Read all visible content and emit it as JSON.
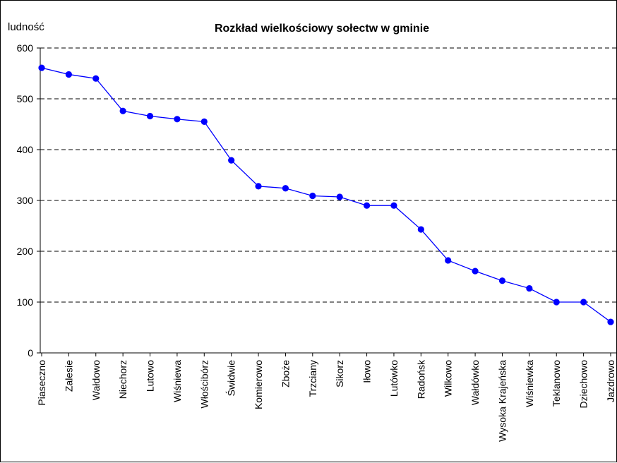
{
  "chart_data": {
    "type": "line",
    "title": "Rozkład wielkościowy sołectw w gminie",
    "ylabel": "ludność",
    "xlabel": "",
    "ylim": [
      0,
      600
    ],
    "yticks": [
      0,
      100,
      200,
      300,
      400,
      500,
      600
    ],
    "grid": "horizontal dashed",
    "legend": "none",
    "categories": [
      "Piaseczno",
      "Zalesie",
      "Wałdowo",
      "Niechorz",
      "Lutowo",
      "Wiśniewa",
      "Włościbórz",
      "Świdwie",
      "Komierowo",
      "Zboże",
      "Trzciany",
      "Sikorz",
      "Iłowo",
      "Lutówko",
      "Radońsk",
      "Wilkowo",
      "Wałdówko",
      "Wysoka Krajeńska",
      "Wiśniewka",
      "Teklanowo",
      "Dziechowo",
      "Jazdrowo"
    ],
    "series": [
      {
        "values": [
          561,
          548,
          540,
          476,
          466,
          460,
          455,
          379,
          328,
          324,
          309,
          307,
          290,
          290,
          243,
          182,
          161,
          142,
          127,
          100,
          100,
          61
        ]
      }
    ],
    "colors": {
      "line": "#0000ff",
      "marker": "#0000ff",
      "grid": "#000000"
    }
  }
}
